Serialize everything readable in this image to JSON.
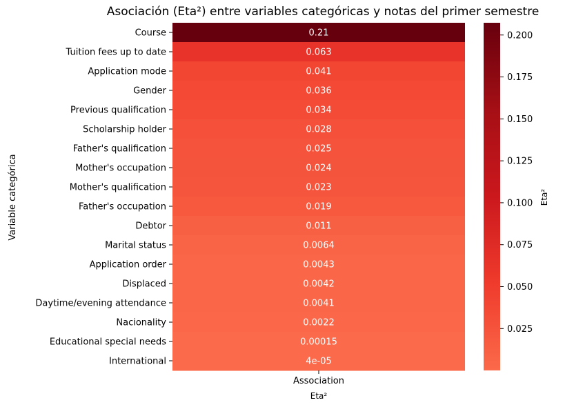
{
  "chart_data": {
    "type": "heatmap",
    "title": "Asociación (Eta²) entre variables categóricas y notas del primer semestre",
    "xlabel": "Eta²",
    "ylabel": "Variable categórica",
    "columns": [
      "Association"
    ],
    "rows": [
      {
        "label": "Course",
        "value": 0.2073,
        "annot": "0.21"
      },
      {
        "label": "Tuition fees up to date",
        "value": 0.063,
        "annot": "0.063"
      },
      {
        "label": "Application mode",
        "value": 0.041,
        "annot": "0.041"
      },
      {
        "label": "Gender",
        "value": 0.036,
        "annot": "0.036"
      },
      {
        "label": "Previous qualification",
        "value": 0.034,
        "annot": "0.034"
      },
      {
        "label": "Scholarship holder",
        "value": 0.028,
        "annot": "0.028"
      },
      {
        "label": "Father's qualification",
        "value": 0.025,
        "annot": "0.025"
      },
      {
        "label": "Mother's occupation",
        "value": 0.024,
        "annot": "0.024"
      },
      {
        "label": "Mother's qualification",
        "value": 0.023,
        "annot": "0.023"
      },
      {
        "label": "Father's occupation",
        "value": 0.019,
        "annot": "0.019"
      },
      {
        "label": "Debtor",
        "value": 0.011,
        "annot": "0.011"
      },
      {
        "label": "Marital status",
        "value": 0.0064,
        "annot": "0.0064"
      },
      {
        "label": "Application order",
        "value": 0.0043,
        "annot": "0.0043"
      },
      {
        "label": "Displaced",
        "value": 0.0042,
        "annot": "0.0042"
      },
      {
        "label": "Daytime/evening attendance\t",
        "value": 0.0041,
        "annot": "0.0041"
      },
      {
        "label": "Nacionality",
        "value": 0.0022,
        "annot": "0.0022"
      },
      {
        "label": "Educational special needs",
        "value": 0.00015,
        "annot": "0.00015"
      },
      {
        "label": "International",
        "value": 4e-05,
        "annot": "4e-05"
      }
    ],
    "colorbar": {
      "label": "Eta²",
      "min": 4e-05,
      "max": 0.2073,
      "ticks": [
        0.025,
        0.05,
        0.075,
        0.1,
        0.125,
        0.15,
        0.175,
        0.2
      ],
      "tick_labels": [
        "0.025",
        "0.050",
        "0.075",
        "0.100",
        "0.125",
        "0.150",
        "0.175",
        "0.200"
      ],
      "colormap": "Reds",
      "colors": [
        "#fb6a4a",
        "#ef3b2c",
        "#cb181d",
        "#a50f15",
        "#67000d"
      ]
    }
  }
}
